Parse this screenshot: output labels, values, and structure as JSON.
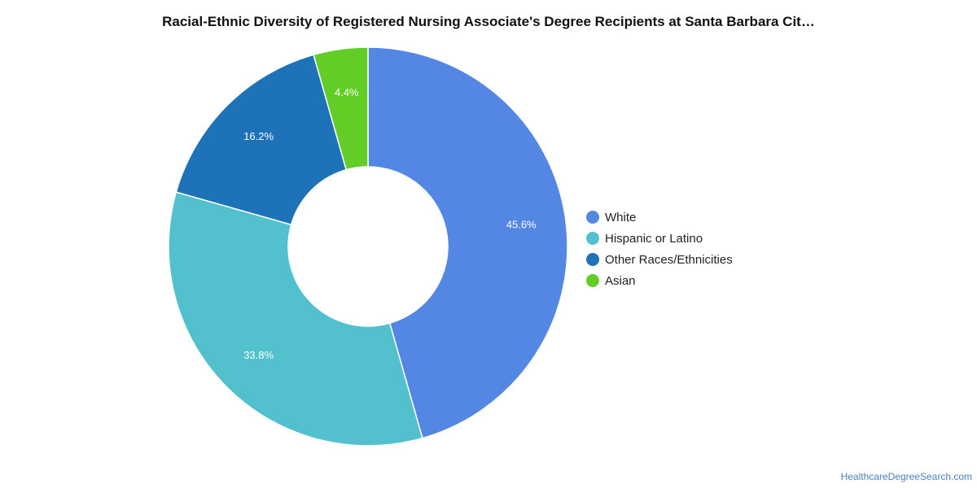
{
  "chart_data": {
    "type": "pie",
    "title": "Racial-Ethnic Diversity of Registered Nursing Associate's Degree Recipients at Santa Barbara Cit…",
    "donut": true,
    "legend_position": "right",
    "slices": [
      {
        "label": "White",
        "value": 45.6,
        "display": "45.6%",
        "color": "#5486e3"
      },
      {
        "label": "Hispanic or Latino",
        "value": 33.8,
        "display": "33.8%",
        "color": "#52c1cd"
      },
      {
        "label": "Other Races/Ethnicities",
        "value": 16.2,
        "display": "16.2%",
        "color": "#1e72b8"
      },
      {
        "label": "Asian",
        "value": 4.4,
        "display": "4.4%",
        "color": "#63cd28"
      }
    ]
  },
  "footer": {
    "credit": "HealthcareDegreeSearch.com"
  }
}
